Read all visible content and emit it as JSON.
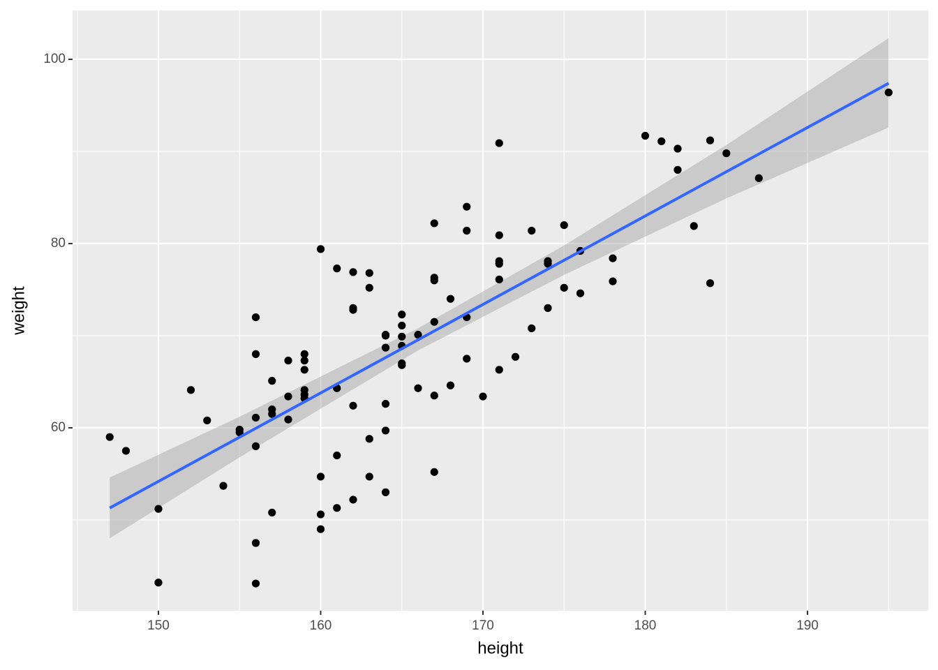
{
  "chart_data": {
    "type": "scatter",
    "x_label": "height",
    "y_label": "weight",
    "xlim": [
      144.71,
      197.44
    ],
    "ylim": [
      40.15,
      105.3
    ],
    "xticks": [
      150,
      160,
      170,
      180,
      190
    ],
    "yticks": [
      60,
      80,
      100
    ],
    "x_minor_grid": [
      145,
      155,
      165,
      175,
      185,
      195
    ],
    "y_minor_grid": [
      50,
      70,
      90
    ],
    "grid": true,
    "point_color": "#000000",
    "x": [
      147,
      148,
      150,
      150,
      152,
      153,
      154,
      155,
      155,
      156,
      156,
      156,
      156,
      156,
      156,
      157,
      157,
      157,
      157,
      158,
      158,
      158,
      159,
      159,
      159,
      159,
      159,
      159,
      160,
      160,
      160,
      160,
      161,
      161,
      161,
      161,
      162,
      162,
      162,
      162,
      162,
      163,
      163,
      163,
      163,
      164,
      164,
      164,
      164,
      164,
      164,
      165,
      165,
      165,
      165,
      165,
      165,
      166,
      166,
      167,
      167,
      167,
      167,
      167,
      167,
      168,
      168,
      169,
      169,
      169,
      169,
      170,
      171,
      171,
      171,
      171,
      171,
      171,
      172,
      173,
      173,
      174,
      174,
      174,
      175,
      175,
      176,
      176,
      178,
      178,
      180,
      181,
      182,
      182,
      183,
      184,
      184,
      185,
      187,
      195
    ],
    "y": [
      59.0,
      57.5,
      51.2,
      43.2,
      64.1,
      60.8,
      53.7,
      59.8,
      59.5,
      72.0,
      68.0,
      61.1,
      58.0,
      47.5,
      43.1,
      65.1,
      62.0,
      61.5,
      50.8,
      67.3,
      63.4,
      60.9,
      68.0,
      67.3,
      66.3,
      64.1,
      63.6,
      63.2,
      79.4,
      54.7,
      50.6,
      49.0,
      77.3,
      64.3,
      57.0,
      51.3,
      76.9,
      73.0,
      72.8,
      62.4,
      52.2,
      76.8,
      75.2,
      58.8,
      54.7,
      70.1,
      70.0,
      68.7,
      62.6,
      59.7,
      53.0,
      72.3,
      71.1,
      69.9,
      68.9,
      67.0,
      66.8,
      70.1,
      64.3,
      82.2,
      76.3,
      76.0,
      71.5,
      63.5,
      55.2,
      74.0,
      64.6,
      84.0,
      81.4,
      72.0,
      67.5,
      63.4,
      90.9,
      80.9,
      78.1,
      77.8,
      76.1,
      66.3,
      67.7,
      81.4,
      70.8,
      78.1,
      77.8,
      73.0,
      82.0,
      75.2,
      79.2,
      74.6,
      78.4,
      75.9,
      91.7,
      91.1,
      90.3,
      88.0,
      81.9,
      91.2,
      75.7,
      89.8,
      87.1,
      96.4
    ],
    "fit": {
      "color": "#3366ff",
      "x": [
        147,
        195
      ],
      "y": [
        51.3,
        97.4
      ],
      "band_color": "#999999",
      "band_x": [
        147,
        155,
        166,
        175,
        185,
        195
      ],
      "band_lower": [
        48.0,
        56.8,
        68.4,
        76.6,
        84.9,
        92.6
      ],
      "band_upper": [
        54.6,
        61.2,
        70.8,
        79.8,
        90.7,
        102.3
      ]
    }
  }
}
